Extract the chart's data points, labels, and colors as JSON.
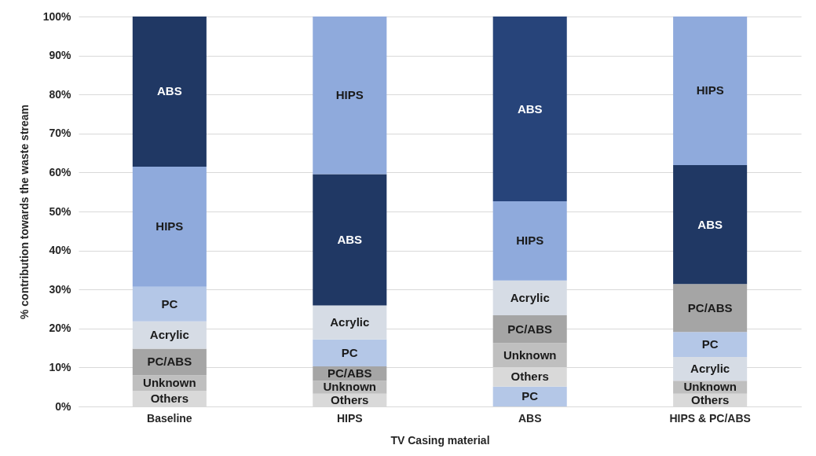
{
  "chart_data": {
    "type": "bar",
    "stacked": true,
    "xlabel": "TV Casing material",
    "ylabel": "% contribution towards the waste stream",
    "categories": [
      "Baseline",
      "HIPS",
      "ABS",
      "HIPS & PC/ABS"
    ],
    "series": [
      {
        "values": [
          4.0,
          3.3,
          5.1,
          3.3
        ],
        "colors": [
          "#d9d9d9",
          "#d9d9d9",
          "#b4c7e7",
          "#d9d9d9"
        ],
        "value_labels": [
          "Others",
          "Others",
          "PC",
          "Others"
        ]
      },
      {
        "values": [
          4.0,
          3.3,
          5.0,
          3.3
        ],
        "colors": [
          "#bfbfbf",
          "#bfbfbf",
          "#d9d9d9",
          "#bfbfbf"
        ],
        "value_labels": [
          "Unknown",
          "Unknown",
          "Others",
          "Unknown"
        ]
      },
      {
        "values": [
          6.8,
          3.7,
          6.2,
          6.1
        ],
        "colors": [
          "#a5a5a5",
          "#a5a5a5",
          "#bfbfbf",
          "#d6dce5"
        ],
        "value_labels": [
          "PC/ABS",
          "PC/ABS",
          "Unknown",
          "Acrylic"
        ]
      },
      {
        "values": [
          7.0,
          6.9,
          7.1,
          6.4
        ],
        "colors": [
          "#d6dce5",
          "#b4c7e7",
          "#a5a5a5",
          "#b4c7e7"
        ],
        "value_labels": [
          "Acrylic",
          "PC",
          "PC/ABS",
          "PC"
        ]
      },
      {
        "values": [
          8.9,
          8.7,
          8.9,
          12.3
        ],
        "colors": [
          "#b4c7e7",
          "#d6dce5",
          "#d6dce5",
          "#a5a5a5"
        ],
        "value_labels": [
          "PC",
          "Acrylic",
          "Acrylic",
          "PC/ABS"
        ]
      },
      {
        "values": [
          30.8,
          33.7,
          20.3,
          30.5
        ],
        "colors": [
          "#8faadc",
          "#203864",
          "#8faadc",
          "#203864"
        ],
        "value_labels": [
          "HIPS",
          "ABS",
          "HIPS",
          "ABS"
        ]
      },
      {
        "values": [
          38.5,
          40.4,
          47.4,
          38.1
        ],
        "colors": [
          "#203864",
          "#8faadc",
          "#27447a",
          "#8faadc"
        ],
        "value_labels": [
          "ABS",
          "HIPS",
          "ABS",
          "HIPS"
        ]
      }
    ],
    "ylim": [
      0,
      100
    ],
    "yticks": [
      {
        "value": 0,
        "label": "0%"
      },
      {
        "value": 10,
        "label": "10%"
      },
      {
        "value": 20,
        "label": "20%"
      },
      {
        "value": 30,
        "label": "30%"
      },
      {
        "value": 40,
        "label": "40%"
      },
      {
        "value": 50,
        "label": "50%"
      },
      {
        "value": 60,
        "label": "60%"
      },
      {
        "value": 70,
        "label": "70%"
      },
      {
        "value": 80,
        "label": "80%"
      },
      {
        "value": 90,
        "label": "90%"
      },
      {
        "value": 100,
        "label": "100%"
      }
    ],
    "grid": "y"
  }
}
